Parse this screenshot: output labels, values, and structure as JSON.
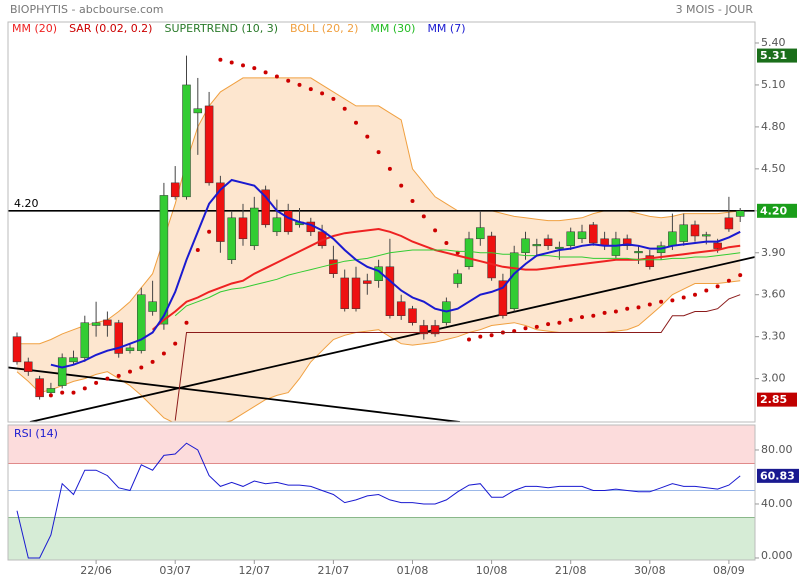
{
  "chart_data": [
    {
      "type": "candlestick",
      "title": "BIOPHYTIS - abcbourse.com",
      "subtitle": "3 MOIS - JOUR",
      "categories": [
        null,
        null,
        null,
        null,
        null,
        null,
        null,
        "22/06",
        null,
        null,
        null,
        null,
        null,
        null,
        "03/07",
        null,
        null,
        null,
        null,
        null,
        null,
        "12/07",
        null,
        null,
        null,
        null,
        null,
        null,
        "21/07",
        null,
        null,
        null,
        null,
        null,
        null,
        "01/08",
        null,
        null,
        null,
        null,
        null,
        null,
        "10/08",
        null,
        null,
        null,
        null,
        null,
        null,
        "21/08",
        null,
        null,
        null,
        null,
        null,
        null,
        "30/08",
        null,
        null,
        null,
        null,
        null,
        null,
        "08/09",
        null
      ],
      "open": [
        3.3,
        3.12,
        3.0,
        2.9,
        2.95,
        3.12,
        3.15,
        3.38,
        3.42,
        3.4,
        3.2,
        3.2,
        3.48,
        3.39,
        4.4,
        4.3,
        4.9,
        4.95,
        4.4,
        3.85,
        4.15,
        3.95,
        4.35,
        4.05,
        4.2,
        4.1,
        4.12,
        4.05,
        3.85,
        3.72,
        3.72,
        3.7,
        3.7,
        3.8,
        3.55,
        3.5,
        3.38,
        3.38,
        3.4,
        3.68,
        3.8,
        4.0,
        4.02,
        3.7,
        3.5,
        3.9,
        3.95,
        4.0,
        3.93,
        3.95,
        4.0,
        4.1,
        4.0,
        3.88,
        4.0,
        3.9,
        3.88,
        3.9,
        3.95,
        3.98,
        4.1,
        4.02,
        3.97,
        4.15,
        4.16
      ],
      "high": [
        3.33,
        3.15,
        3.02,
        2.97,
        3.18,
        3.2,
        3.45,
        3.55,
        3.48,
        3.42,
        3.25,
        3.65,
        3.7,
        4.4,
        4.52,
        5.31,
        5.15,
        5.05,
        4.45,
        4.2,
        4.25,
        4.3,
        4.38,
        4.28,
        4.25,
        4.22,
        4.15,
        4.1,
        3.95,
        3.78,
        3.8,
        3.75,
        3.85,
        4.0,
        3.6,
        3.52,
        3.42,
        3.42,
        3.58,
        3.78,
        4.05,
        4.2,
        4.05,
        3.75,
        3.95,
        4.05,
        4.0,
        4.03,
        3.98,
        4.08,
        4.1,
        4.12,
        4.05,
        4.05,
        4.03,
        3.95,
        3.92,
        3.98,
        4.18,
        4.18,
        4.13,
        4.05,
        4.0,
        4.3,
        4.22
      ],
      "low": [
        3.1,
        3.02,
        2.85,
        2.88,
        2.93,
        3.1,
        3.12,
        3.3,
        3.3,
        3.15,
        3.18,
        3.18,
        3.45,
        3.35,
        4.28,
        4.28,
        4.6,
        4.38,
        3.9,
        3.82,
        3.95,
        3.92,
        4.08,
        4.02,
        4.03,
        4.08,
        4.02,
        3.93,
        3.72,
        3.48,
        3.48,
        3.6,
        3.65,
        3.43,
        3.42,
        3.38,
        3.28,
        3.3,
        3.38,
        3.65,
        3.78,
        3.95,
        3.7,
        3.43,
        3.48,
        3.85,
        3.88,
        3.92,
        3.85,
        3.92,
        3.97,
        3.95,
        3.92,
        3.85,
        3.92,
        3.82,
        3.78,
        3.85,
        3.92,
        3.95,
        3.98,
        3.96,
        3.9,
        4.05,
        4.12
      ],
      "close": [
        3.12,
        3.05,
        2.87,
        2.93,
        3.15,
        3.15,
        3.4,
        3.4,
        3.38,
        3.18,
        3.22,
        3.6,
        3.55,
        4.31,
        4.3,
        5.1,
        4.93,
        4.4,
        3.98,
        4.15,
        4.0,
        4.22,
        4.1,
        4.15,
        4.05,
        4.12,
        4.05,
        3.95,
        3.75,
        3.5,
        3.5,
        3.68,
        3.8,
        3.45,
        3.45,
        3.4,
        3.32,
        3.32,
        3.55,
        3.75,
        4.0,
        4.08,
        3.72,
        3.45,
        3.9,
        4.0,
        3.96,
        3.95,
        3.94,
        4.05,
        4.05,
        3.97,
        3.95,
        4.0,
        3.95,
        3.91,
        3.8,
        3.95,
        4.05,
        4.1,
        4.02,
        4.03,
        3.93,
        4.07,
        4.2
      ],
      "up_color": "#33cc33",
      "down_color": "#ee1111",
      "series": [
        {
          "name": "MM (20)",
          "style": "line",
          "color": "#ee2222",
          "label_color": "#ee2222",
          "values": [
            null,
            null,
            null,
            null,
            null,
            null,
            null,
            null,
            null,
            null,
            null,
            null,
            3.35,
            3.42,
            3.48,
            3.55,
            3.58,
            3.62,
            3.65,
            3.68,
            3.7,
            3.75,
            3.79,
            3.83,
            3.87,
            3.91,
            3.95,
            3.99,
            4.02,
            4.04,
            4.05,
            4.06,
            4.07,
            4.05,
            4.02,
            3.98,
            3.95,
            3.92,
            3.9,
            3.88,
            3.86,
            3.84,
            3.82,
            3.8,
            3.79,
            3.78,
            3.78,
            3.79,
            3.8,
            3.81,
            3.82,
            3.83,
            3.84,
            3.85,
            3.85,
            3.85,
            3.86,
            3.87,
            3.88,
            3.89,
            3.9,
            3.91,
            3.92,
            3.94,
            3.95
          ]
        },
        {
          "name": "SAR (0.02, 0.2)",
          "style": "dots",
          "color": "#cc0000",
          "label_color": "#cc0000",
          "values": [
            null,
            null,
            null,
            2.88,
            2.9,
            2.9,
            2.93,
            2.97,
            3.0,
            3.02,
            3.05,
            3.08,
            3.12,
            3.18,
            3.25,
            3.4,
            3.92,
            4.05,
            5.28,
            5.26,
            5.24,
            5.22,
            5.19,
            5.16,
            5.13,
            5.1,
            5.07,
            5.04,
            5.0,
            4.93,
            4.83,
            4.73,
            4.62,
            4.5,
            4.38,
            4.27,
            4.16,
            4.06,
            3.97,
            3.9,
            3.28,
            3.3,
            3.31,
            3.33,
            3.34,
            3.36,
            3.37,
            3.39,
            3.4,
            3.42,
            3.44,
            3.45,
            3.47,
            3.48,
            3.5,
            3.51,
            3.53,
            3.55,
            3.56,
            3.58,
            3.6,
            3.63,
            3.66,
            3.7,
            3.74
          ]
        },
        {
          "name": "SUPERTREND (10, 3)",
          "style": "line",
          "color": "#8b1a1a",
          "label_color": "#2a7a2a",
          "values": [
            null,
            null,
            null,
            null,
            null,
            null,
            null,
            null,
            null,
            null,
            null,
            null,
            null,
            null,
            2.7,
            3.33,
            3.33,
            3.33,
            3.33,
            3.33,
            3.33,
            3.33,
            3.33,
            3.33,
            3.33,
            3.33,
            3.33,
            3.33,
            3.33,
            3.33,
            3.33,
            3.33,
            3.33,
            3.33,
            3.33,
            3.33,
            3.33,
            3.33,
            3.33,
            3.33,
            3.33,
            3.33,
            3.33,
            3.33,
            3.33,
            3.33,
            3.33,
            3.33,
            3.33,
            3.33,
            3.33,
            3.33,
            3.33,
            3.33,
            3.33,
            3.33,
            3.33,
            3.33,
            3.45,
            3.45,
            3.48,
            3.48,
            3.5,
            3.57,
            3.6
          ]
        },
        {
          "name": "BOLL (20, 2)",
          "style": "band",
          "color": "#f0a040",
          "fill": "#fde6cf",
          "label_color": "#f0a040",
          "upper": [
            3.25,
            3.25,
            3.25,
            3.28,
            3.32,
            3.35,
            3.38,
            3.4,
            3.42,
            3.48,
            3.55,
            3.65,
            3.75,
            4.0,
            4.25,
            4.55,
            4.8,
            4.95,
            5.05,
            5.1,
            5.15,
            5.15,
            5.15,
            5.15,
            5.15,
            5.15,
            5.15,
            5.1,
            5.05,
            5.0,
            4.95,
            4.95,
            4.95,
            4.9,
            4.85,
            4.5,
            4.4,
            4.3,
            4.25,
            4.2,
            4.2,
            4.2,
            4.2,
            4.18,
            4.16,
            4.15,
            4.14,
            4.13,
            4.13,
            4.14,
            4.15,
            4.18,
            4.2,
            4.2,
            4.2,
            4.18,
            4.16,
            4.15,
            4.16,
            4.18,
            4.18,
            4.18,
            4.18,
            4.19,
            4.2
          ],
          "lower": [
            3.05,
            2.98,
            2.9,
            2.92,
            2.95,
            2.98,
            3.0,
            3.03,
            3.05,
            3.0,
            2.95,
            2.88,
            2.8,
            2.72,
            2.68,
            2.65,
            2.65,
            2.66,
            2.68,
            2.7,
            2.75,
            2.8,
            2.85,
            2.88,
            2.9,
            3.0,
            3.12,
            3.2,
            3.28,
            3.31,
            3.33,
            3.34,
            3.35,
            3.3,
            3.25,
            3.24,
            3.25,
            3.26,
            3.28,
            3.3,
            3.33,
            3.35,
            3.38,
            3.39,
            3.4,
            3.38,
            3.35,
            3.34,
            3.33,
            3.33,
            3.33,
            3.33,
            3.33,
            3.34,
            3.35,
            3.38,
            3.45,
            3.52,
            3.6,
            3.64,
            3.68,
            3.68,
            3.68,
            3.69,
            3.7
          ]
        },
        {
          "name": "MM (30)",
          "style": "line",
          "color": "#33cc33",
          "label_color": "#22bb22",
          "values": [
            null,
            null,
            null,
            null,
            null,
            null,
            null,
            null,
            null,
            null,
            null,
            null,
            null,
            null,
            3.45,
            3.52,
            3.55,
            3.58,
            3.62,
            3.64,
            3.65,
            3.67,
            3.69,
            3.71,
            3.74,
            3.76,
            3.78,
            3.8,
            3.82,
            3.84,
            3.85,
            3.86,
            3.88,
            3.9,
            3.91,
            3.92,
            3.92,
            3.92,
            3.92,
            3.91,
            3.91,
            3.9,
            3.9,
            3.89,
            3.89,
            3.88,
            3.88,
            3.88,
            3.87,
            3.87,
            3.87,
            3.86,
            3.86,
            3.86,
            3.86,
            3.85,
            3.85,
            3.85,
            3.86,
            3.86,
            3.87,
            3.87,
            3.88,
            3.89,
            3.9
          ]
        },
        {
          "name": "MM (7)",
          "style": "line",
          "color": "#1a1ad0",
          "label_color": "#1a1ad0",
          "values": [
            null,
            null,
            null,
            3.1,
            3.08,
            3.1,
            3.13,
            3.17,
            3.2,
            3.22,
            3.25,
            3.28,
            3.33,
            3.45,
            3.62,
            3.85,
            4.05,
            4.25,
            4.35,
            4.42,
            4.4,
            4.38,
            4.3,
            4.2,
            4.15,
            4.12,
            4.1,
            4.06,
            4.0,
            3.92,
            3.85,
            3.8,
            3.77,
            3.7,
            3.63,
            3.58,
            3.55,
            3.5,
            3.48,
            3.5,
            3.55,
            3.6,
            3.62,
            3.65,
            3.75,
            3.82,
            3.88,
            3.9,
            3.92,
            3.93,
            3.95,
            3.96,
            3.95,
            3.95,
            3.96,
            3.95,
            3.93,
            3.93,
            3.95,
            3.96,
            3.97,
            3.98,
            3.98,
            4.01,
            4.05
          ]
        }
      ],
      "hline": {
        "value": 4.2,
        "label": "4.20"
      },
      "trendlines": [
        {
          "from": [
            -0.8,
            3.08
          ],
          "to": [
            39.2,
            2.69
          ]
        },
        {
          "from": [
            1.15,
            2.69
          ],
          "to": [
            65.3,
            3.87
          ]
        }
      ],
      "price_labels": [
        {
          "value": 5.31,
          "color": "#1a6e1a"
        },
        {
          "value": 4.2,
          "label": "4.20",
          "color": "#1a9e1a"
        },
        {
          "value": 2.85,
          "color": "#c00000"
        }
      ],
      "ylim": [
        2.69,
        5.55
      ],
      "yticks": [
        {
          "value": 3,
          "label": "3.00"
        },
        {
          "value": 3.3,
          "label": "3.30"
        },
        {
          "value": 3.6,
          "label": "3.60"
        },
        {
          "value": 3.9,
          "label": "3.90"
        },
        {
          "value": 4.2,
          "label": "4.20"
        },
        {
          "value": 4.5,
          "label": "4.50"
        },
        {
          "value": 4.8,
          "label": "4.80"
        },
        {
          "value": 5.1,
          "label": "5.10"
        },
        {
          "value": 5.4,
          "label": "5.40"
        }
      ]
    },
    {
      "type": "line",
      "title": "RSI (14)",
      "color": "#1a1ad0",
      "values": [
        35,
        0,
        0,
        17,
        55,
        47,
        65,
        65,
        61,
        52,
        50,
        69,
        65,
        76,
        77,
        85,
        80,
        61,
        53,
        56,
        53,
        57,
        55,
        56,
        54,
        54,
        53,
        50,
        47,
        41,
        43,
        46,
        47,
        43,
        41,
        41,
        40,
        40,
        43,
        49,
        54,
        55,
        45,
        45,
        50,
        53,
        53,
        52,
        53,
        53,
        53,
        50,
        50,
        51,
        50,
        49,
        49,
        52,
        55,
        53,
        53,
        52,
        51,
        54,
        60.83
      ],
      "overbought": 70,
      "oversold": 30,
      "midline": 50,
      "ylim": [
        -1.5,
        98.5
      ],
      "yticks": [
        {
          "value": 0,
          "label": "0.000"
        },
        {
          "value": 40,
          "label": "40.00"
        },
        {
          "value": 80,
          "label": "80.00"
        }
      ]
    }
  ]
}
